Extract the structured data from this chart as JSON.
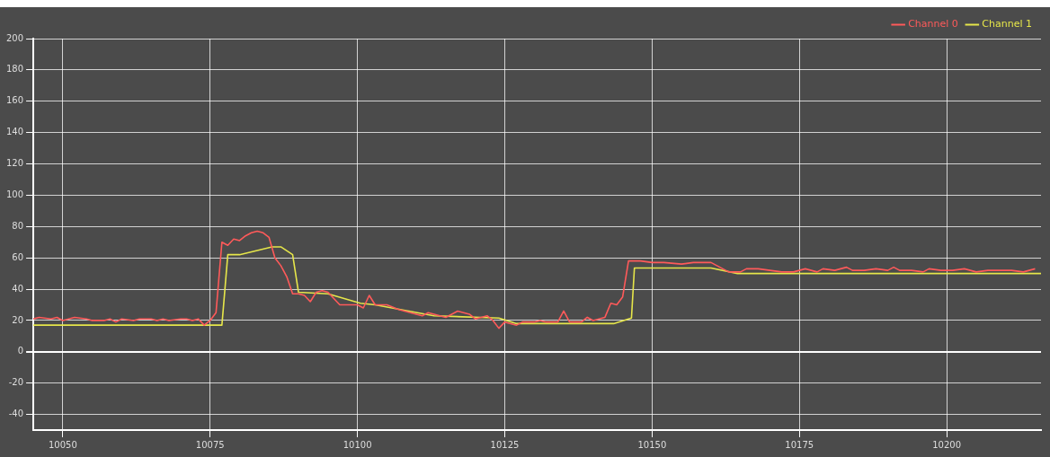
{
  "chart_data": {
    "type": "line",
    "xlim": [
      10045,
      10216
    ],
    "ylim": [
      -50,
      200
    ],
    "xticks": [
      10050,
      10075,
      10100,
      10125,
      10150,
      10175,
      10200
    ],
    "yticks": [
      -40,
      -20,
      0,
      20,
      40,
      60,
      80,
      100,
      120,
      140,
      160,
      180,
      200
    ],
    "grid": true,
    "legend": "top right",
    "marker": "none",
    "line_style": "solid",
    "series": [
      {
        "name": "Channel 0",
        "color": "#ff5a5a",
        "x": [
          10045,
          10046,
          10048,
          10049,
          10050,
          10052,
          10054,
          10055,
          10057,
          10058,
          10059,
          10060,
          10062,
          10063,
          10065,
          10066,
          10067,
          10068,
          10070,
          10071,
          10072,
          10073,
          10074,
          10075,
          10076,
          10077,
          10078,
          10079,
          10080,
          10081,
          10082,
          10083,
          10084,
          10085,
          10086,
          10087,
          10088,
          10089,
          10090,
          10091,
          10092,
          10093,
          10094,
          10095,
          10096,
          10097,
          10100,
          10101,
          10102,
          10103,
          10105,
          10107,
          10109,
          10111,
          10112,
          10114,
          10115,
          10117,
          10119,
          10120,
          10121,
          10122,
          10123,
          10124,
          10125,
          10126,
          10127,
          10128,
          10130,
          10131,
          10132,
          10134,
          10135,
          10136,
          10138,
          10139,
          10140,
          10141,
          10142,
          10143,
          10144,
          10145,
          10146,
          10147,
          10148,
          10150,
          10152,
          10155,
          10157,
          10160,
          10161,
          10162,
          10163,
          10164,
          10165,
          10166,
          10168,
          10170,
          10172,
          10174,
          10176,
          10178,
          10179,
          10181,
          10183,
          10184,
          10186,
          10188,
          10190,
          10191,
          10192,
          10194,
          10196,
          10197,
          10199,
          10201,
          10203,
          10205,
          10207,
          10209,
          10211,
          10213,
          10215
        ],
        "values": [
          21,
          22,
          21,
          22,
          20,
          22,
          21,
          20,
          20,
          21,
          19,
          21,
          20,
          21,
          21,
          20,
          21,
          20,
          21,
          21,
          20,
          21,
          17,
          20,
          25,
          70,
          68,
          72,
          71,
          74,
          76,
          77,
          76,
          73,
          60,
          55,
          48,
          37,
          37,
          36,
          32,
          38,
          39,
          38,
          34,
          30,
          30,
          28,
          36,
          30,
          30,
          27,
          25,
          23,
          25,
          23,
          22,
          26,
          24,
          21,
          22,
          23,
          20,
          15,
          19,
          18,
          17,
          19,
          19,
          20,
          19,
          19,
          26,
          19,
          19,
          22,
          20,
          21,
          22,
          31,
          30,
          35,
          58,
          58,
          58,
          57,
          57,
          56,
          57,
          57,
          55,
          53,
          51,
          51,
          51,
          53,
          53,
          52,
          51,
          51,
          53,
          51,
          53,
          52,
          54,
          52,
          52,
          53,
          52,
          54,
          52,
          52,
          51,
          53,
          52,
          52,
          53,
          51,
          52,
          52,
          52,
          51,
          53
        ]
      },
      {
        "name": "Channel 1",
        "color": "#e6e64a",
        "x": [
          10045,
          10077,
          10078,
          10080,
          10085.5,
          10087,
          10089,
          10090,
          10095,
          10100.5,
          10103,
          10113,
          10124,
          10127,
          10143.5,
          10146.5,
          10147,
          10160,
          10164.5,
          10216
        ],
        "values": [
          17,
          17,
          62,
          62,
          67,
          67,
          62,
          38,
          37,
          31,
          30,
          23,
          21.5,
          18,
          18,
          21.5,
          53.5,
          53.5,
          50,
          50
        ]
      }
    ]
  }
}
